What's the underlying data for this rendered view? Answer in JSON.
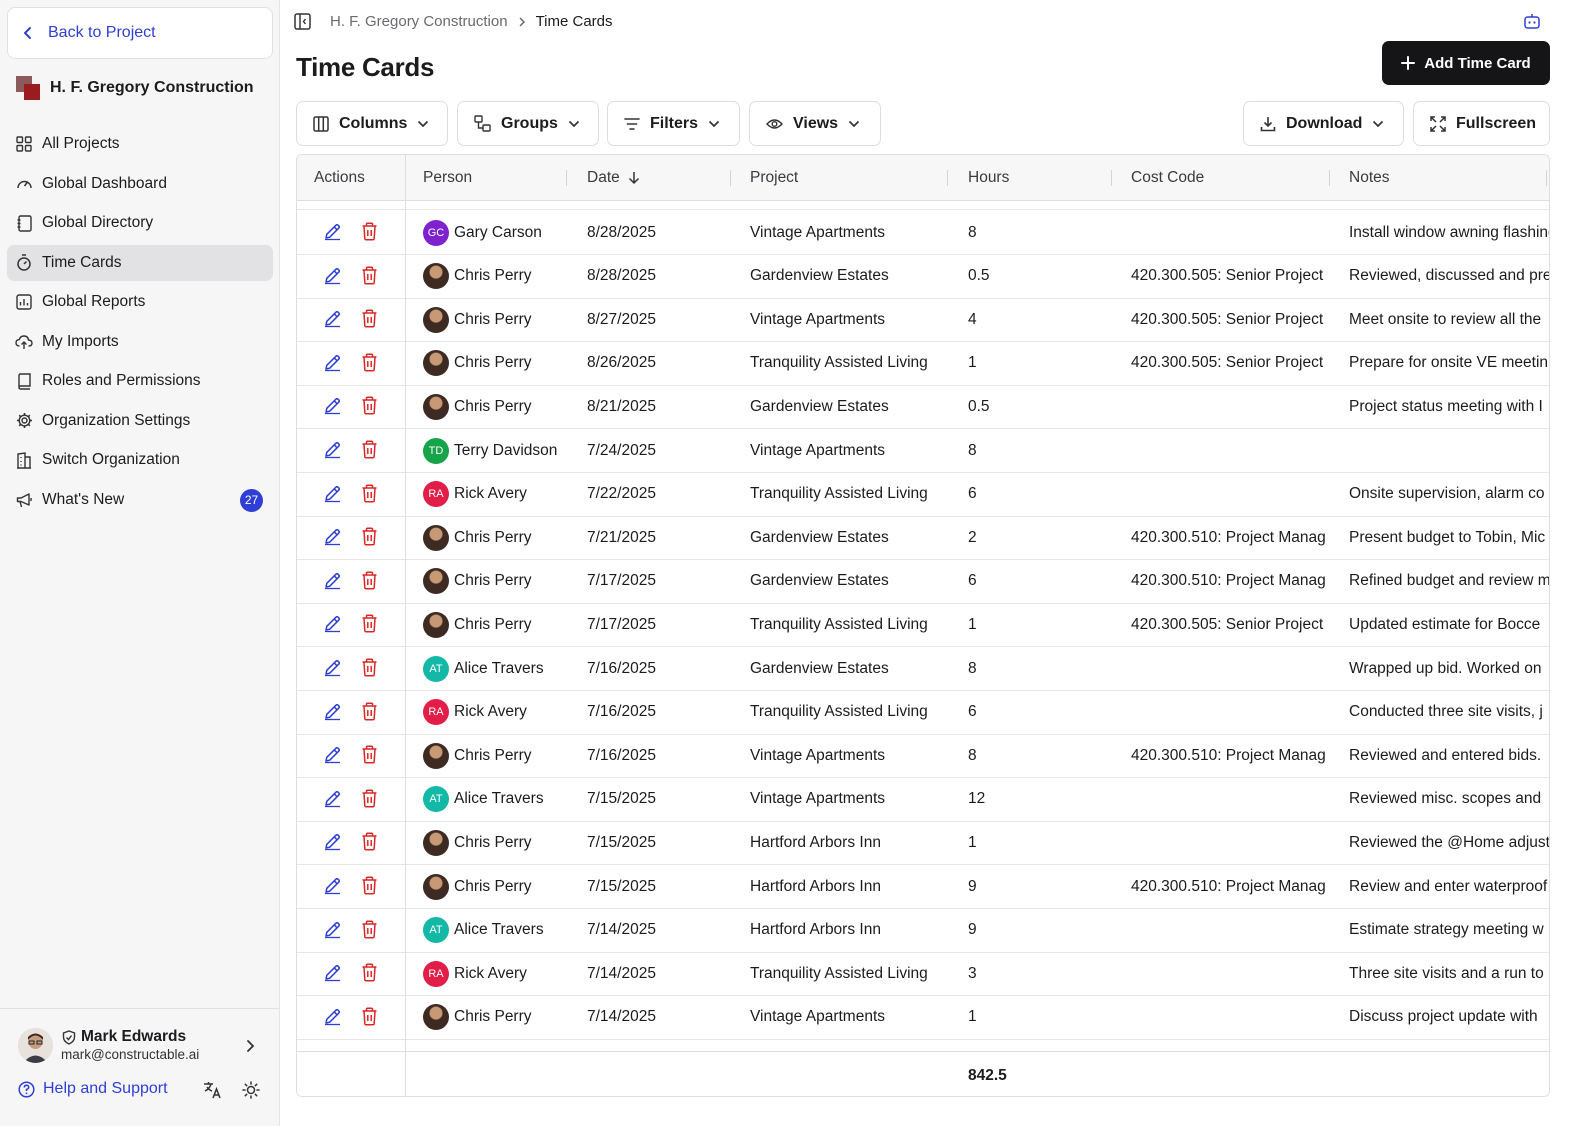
{
  "sidebar": {
    "back_label": "Back to Project",
    "org_name": "H. F. Gregory Construction",
    "nav": [
      {
        "label": "All Projects",
        "icon": "grid-icon"
      },
      {
        "label": "Global Dashboard",
        "icon": "gauge-icon"
      },
      {
        "label": "Global Directory",
        "icon": "address-book-icon"
      },
      {
        "label": "Time Cards",
        "icon": "stopwatch-icon",
        "active": true
      },
      {
        "label": "Global Reports",
        "icon": "reports-icon"
      },
      {
        "label": "My Imports",
        "icon": "upload-cloud-icon"
      },
      {
        "label": "Roles and Permissions",
        "icon": "book-lock-icon"
      },
      {
        "label": "Organization Settings",
        "icon": "gear-icon"
      },
      {
        "label": "Switch Organization",
        "icon": "building-icon"
      },
      {
        "label": "What's New",
        "icon": "megaphone-icon",
        "badge": "27"
      }
    ],
    "user": {
      "name": "Mark Edwards",
      "email": "mark@constructable.ai"
    },
    "help_label": "Help and Support"
  },
  "header": {
    "breadcrumb": [
      "H. F. Gregory Construction",
      "Time Cards"
    ],
    "title": "Time Cards",
    "add_button": "Add Time Card"
  },
  "toolbar": {
    "columns": "Columns",
    "groups": "Groups",
    "filters": "Filters",
    "views": "Views",
    "download": "Download",
    "fullscreen": "Fullscreen"
  },
  "table": {
    "columns": [
      "Actions",
      "Person",
      "Date",
      "Project",
      "Hours",
      "Cost Code",
      "Notes"
    ],
    "sort_column": "Date",
    "sort_direction": "descending",
    "rows": [
      {
        "person": "Gary Carson",
        "initials": "GC",
        "avatar_color": "#7e22ce",
        "date": "8/28/2025",
        "project": "Vintage Apartments",
        "hours": "8",
        "cost_code": "",
        "notes": "Install window awning flashing"
      },
      {
        "person": "Chris Perry",
        "initials": "",
        "avatar_color": "photo",
        "date": "8/28/2025",
        "project": "Gardenview Estates",
        "hours": "0.5",
        "cost_code": "420.300.505: Senior Project",
        "notes": "Reviewed, discussed and pre"
      },
      {
        "person": "Chris Perry",
        "initials": "",
        "avatar_color": "photo",
        "date": "8/27/2025",
        "project": "Vintage Apartments",
        "hours": "4",
        "cost_code": "420.300.505: Senior Project",
        "notes": "Meet onsite to review all the"
      },
      {
        "person": "Chris Perry",
        "initials": "",
        "avatar_color": "photo",
        "date": "8/26/2025",
        "project": "Tranquility Assisted Living",
        "hours": "1",
        "cost_code": "420.300.505: Senior Project",
        "notes": "Prepare for onsite VE meetin"
      },
      {
        "person": "Chris Perry",
        "initials": "",
        "avatar_color": "photo",
        "date": "8/21/2025",
        "project": "Gardenview Estates",
        "hours": "0.5",
        "cost_code": "",
        "notes": "Project status meeting with I"
      },
      {
        "person": "Terry Davidson",
        "initials": "TD",
        "avatar_color": "#16a34a",
        "date": "7/24/2025",
        "project": "Vintage Apartments",
        "hours": "8",
        "cost_code": "",
        "notes": ""
      },
      {
        "person": "Rick Avery",
        "initials": "RA",
        "avatar_color": "#e11d48",
        "date": "7/22/2025",
        "project": "Tranquility Assisted Living",
        "hours": "6",
        "cost_code": "",
        "notes": "Onsite supervision, alarm co"
      },
      {
        "person": "Chris Perry",
        "initials": "",
        "avatar_color": "photo",
        "date": "7/21/2025",
        "project": "Gardenview Estates",
        "hours": "2",
        "cost_code": "420.300.510: Project Manag",
        "notes": "Present budget to Tobin, Mic"
      },
      {
        "person": "Chris Perry",
        "initials": "",
        "avatar_color": "photo",
        "date": "7/17/2025",
        "project": "Gardenview Estates",
        "hours": "6",
        "cost_code": "420.300.510: Project Manag",
        "notes": "Refined budget and review m"
      },
      {
        "person": "Chris Perry",
        "initials": "",
        "avatar_color": "photo",
        "date": "7/17/2025",
        "project": "Tranquility Assisted Living",
        "hours": "1",
        "cost_code": "420.300.505: Senior Project",
        "notes": "Updated estimate for Bocce"
      },
      {
        "person": "Alice Travers",
        "initials": "AT",
        "avatar_color": "#14b8a6",
        "date": "7/16/2025",
        "project": "Gardenview Estates",
        "hours": "8",
        "cost_code": "",
        "notes": "Wrapped up bid. Worked on"
      },
      {
        "person": "Rick Avery",
        "initials": "RA",
        "avatar_color": "#e11d48",
        "date": "7/16/2025",
        "project": "Tranquility Assisted Living",
        "hours": "6",
        "cost_code": "",
        "notes": "Conducted three site visits, j"
      },
      {
        "person": "Chris Perry",
        "initials": "",
        "avatar_color": "photo",
        "date": "7/16/2025",
        "project": "Vintage Apartments",
        "hours": "8",
        "cost_code": "420.300.510: Project Manag",
        "notes": "Reviewed and entered bids."
      },
      {
        "person": "Alice Travers",
        "initials": "AT",
        "avatar_color": "#14b8a6",
        "date": "7/15/2025",
        "project": "Vintage Apartments",
        "hours": "12",
        "cost_code": "",
        "notes": "Reviewed misc. scopes and"
      },
      {
        "person": "Chris Perry",
        "initials": "",
        "avatar_color": "photo",
        "date": "7/15/2025",
        "project": "Hartford Arbors Inn",
        "hours": "1",
        "cost_code": "",
        "notes": "Reviewed the @Home adjust"
      },
      {
        "person": "Chris Perry",
        "initials": "",
        "avatar_color": "photo",
        "date": "7/15/2025",
        "project": "Hartford Arbors Inn",
        "hours": "9",
        "cost_code": "420.300.510: Project Manag",
        "notes": "Review and enter waterproof"
      },
      {
        "person": "Alice Travers",
        "initials": "AT",
        "avatar_color": "#14b8a6",
        "date": "7/14/2025",
        "project": "Hartford Arbors Inn",
        "hours": "9",
        "cost_code": "",
        "notes": "Estimate strategy meeting w"
      },
      {
        "person": "Rick Avery",
        "initials": "RA",
        "avatar_color": "#e11d48",
        "date": "7/14/2025",
        "project": "Tranquility Assisted Living",
        "hours": "3",
        "cost_code": "",
        "notes": "Three site visits and a run to"
      },
      {
        "person": "Chris Perry",
        "initials": "",
        "avatar_color": "photo",
        "date": "7/14/2025",
        "project": "Vintage Apartments",
        "hours": "1",
        "cost_code": "",
        "notes": "Discuss project update with"
      }
    ],
    "total_hours": "842.5"
  },
  "colors": {
    "accent": "#2f3fd6",
    "delete": "#dc2626",
    "primary_button": "#151518"
  }
}
